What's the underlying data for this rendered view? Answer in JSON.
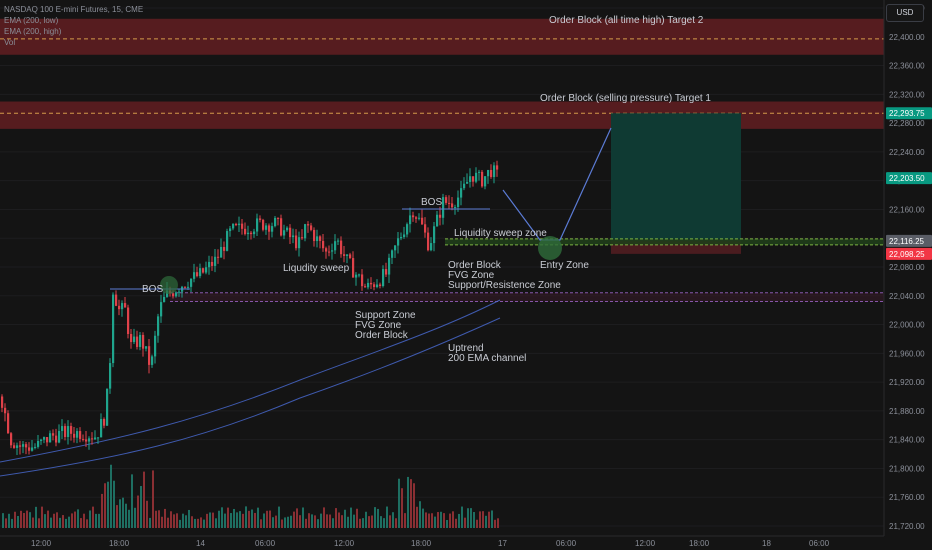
{
  "legend": {
    "symbol": "NASDAQ 100 E-mini Futures, 15, CME",
    "ema_low": "EMA (200, low)",
    "ema_high": "EMA (200, high)",
    "vol": "Vol"
  },
  "currency_button": "USD",
  "colors": {
    "background": "#141414",
    "up": "#1fa58d",
    "down": "#e0424a",
    "vol_up": "#1e6f62",
    "vol_down": "#8a2f33",
    "order_block": "#5a1c20",
    "target_zone": "#0f3a33",
    "stop_zone": "#4a1c1f",
    "trend_line": "#4a6cd4",
    "dashed_orange": "#d49a4a",
    "dashed_purple": "#a26cd6",
    "label_green": "#089981",
    "label_red": "#f23645",
    "label_gray": "#5a5d66"
  },
  "chart_data": {
    "type": "candlestick",
    "title": "NASDAQ 100 E-mini Futures, 15, CME",
    "y_ticks": [
      "22,440.00",
      "22,400.00",
      "22,360.00",
      "22,320.00",
      "22,280.00",
      "22,240.00",
      "22,200.00",
      "22,160.00",
      "22,120.00",
      "22,080.00",
      "22,040.00",
      "22,000.00",
      "21,960.00",
      "21,920.00",
      "21,880.00",
      "21,840.00",
      "21,800.00",
      "21,760.00",
      "21,720.00"
    ],
    "x_ticks": [
      "12:00",
      "18:00",
      "14",
      "06:00",
      "12:00",
      "18:00",
      "17",
      "06:00",
      "12:00",
      "18:00",
      "18",
      "06:00"
    ],
    "ylim": [
      21705,
      22460
    ],
    "price_labels": [
      {
        "text": "22,293.75",
        "value": 22293.75,
        "kind": "green"
      },
      {
        "text": "22,203.50",
        "value": 22203.5,
        "kind": "green"
      },
      {
        "text": "22,116.25",
        "value": 22116.25,
        "kind": "gray"
      },
      {
        "text": "22,098.25",
        "value": 22098.25,
        "kind": "red"
      }
    ],
    "zones": [
      {
        "name": "Order Block (all time high) Target 2",
        "from": 22375,
        "to": 22425,
        "dashed_at": 22397
      },
      {
        "name": "Order Block (selling pressure) Target 1",
        "from": 22272,
        "to": 22310,
        "dashed_at": 22293.75
      }
    ],
    "annotations": {
      "target2": "Order Block (all time high) Target 2",
      "target1": "Order Block (selling pressure) Target 1",
      "bos1": "BOS",
      "bos2": "BOS",
      "liq_sweep": "Liqudity sweep",
      "liq_zone": "Liquidity sweep zone",
      "entry": "Entry Zone",
      "ob_lines": [
        "Order Block",
        "FVG Zone",
        "Support/Resistence Zone"
      ],
      "support_lines": [
        "Support Zone",
        "FVG Zone",
        "Order Block"
      ],
      "uptrend_lines": [
        "Uptrend",
        "200 EMA channel"
      ]
    },
    "price_path": [
      [
        0,
        21900
      ],
      [
        10,
        21840
      ],
      [
        20,
        21830
      ],
      [
        35,
        21830
      ],
      [
        50,
        21845
      ],
      [
        65,
        21850
      ],
      [
        80,
        21850
      ],
      [
        95,
        21845
      ],
      [
        103,
        21870
      ],
      [
        108,
        21920
      ],
      [
        112,
        22050
      ],
      [
        118,
        22020
      ],
      [
        124,
        22020
      ],
      [
        130,
        21970
      ],
      [
        140,
        21980
      ],
      [
        150,
        21940
      ],
      [
        158,
        22020
      ],
      [
        165,
        22040
      ],
      [
        175,
        22050
      ],
      [
        185,
        22060
      ],
      [
        200,
        22070
      ],
      [
        215,
        22090
      ],
      [
        230,
        22130
      ],
      [
        245,
        22135
      ],
      [
        260,
        22140
      ],
      [
        275,
        22140
      ],
      [
        290,
        22120
      ],
      [
        300,
        22110
      ],
      [
        305,
        22140
      ],
      [
        315,
        22120
      ],
      [
        325,
        22100
      ],
      [
        335,
        22120
      ],
      [
        345,
        22090
      ],
      [
        355,
        22070
      ],
      [
        365,
        22050
      ],
      [
        375,
        22060
      ],
      [
        385,
        22070
      ],
      [
        395,
        22110
      ],
      [
        405,
        22140
      ],
      [
        412,
        22160
      ],
      [
        420,
        22140
      ],
      [
        428,
        22110
      ],
      [
        435,
        22140
      ],
      [
        442,
        22170
      ],
      [
        450,
        22170
      ],
      [
        460,
        22180
      ],
      [
        470,
        22210
      ],
      [
        480,
        22200
      ],
      [
        490,
        22215
      ],
      [
        497,
        22205
      ]
    ]
  }
}
